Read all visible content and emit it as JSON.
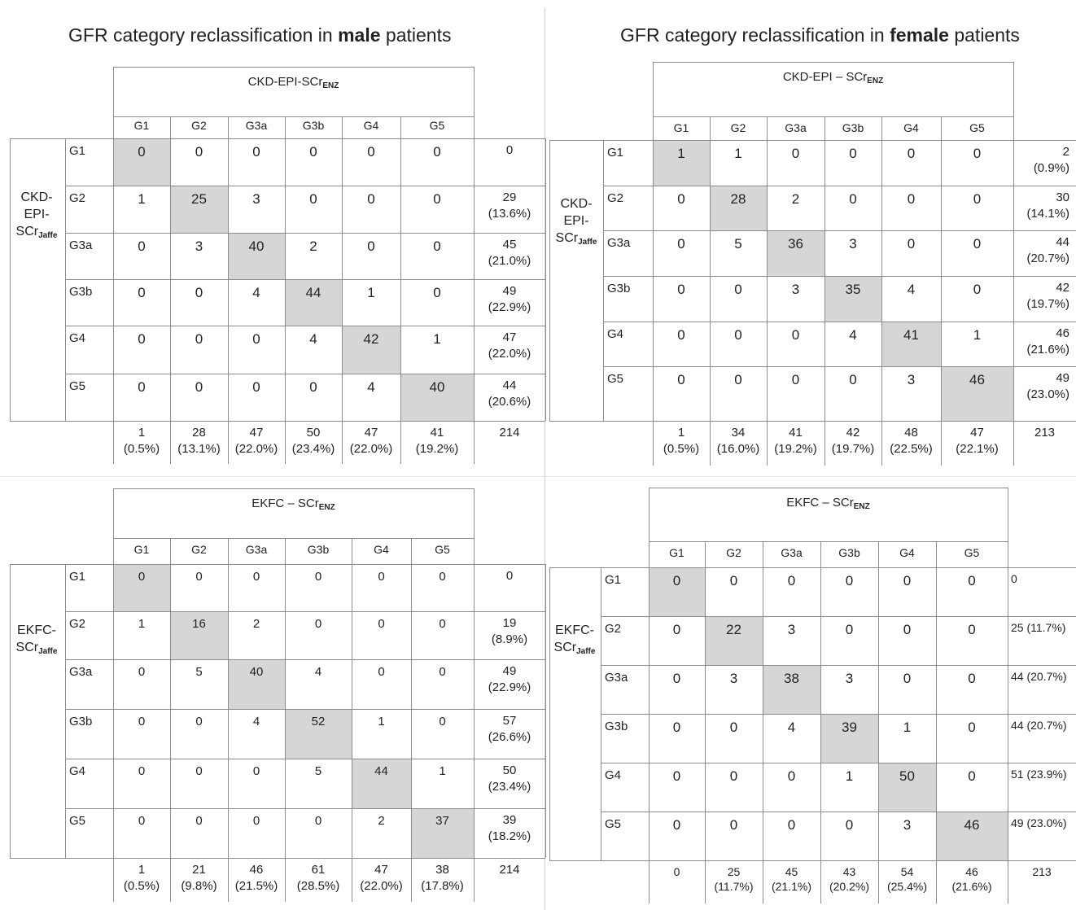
{
  "headings": {
    "male": {
      "prefix": "GFR category reclassification in ",
      "bold": "male",
      "suffix": " patients"
    },
    "female": {
      "prefix": "GFR category reclassification in ",
      "bold": "female",
      "suffix": " patients"
    }
  },
  "columns": [
    "G1",
    "G2",
    "G3a",
    "G3b",
    "G4",
    "G5"
  ],
  "rows": [
    "G1",
    "G2",
    "G3a",
    "G3b",
    "G4",
    "G5"
  ],
  "tables": [
    {
      "id": "male_ckd",
      "col_title": {
        "base": "CKD-EPI-SCr",
        "sub": "ENZ"
      },
      "row_title": {
        "lines": [
          "CKD-",
          "EPI-"
        ],
        "base": "SCr",
        "sub": "Jaffe"
      },
      "cells": [
        [
          0,
          0,
          0,
          0,
          0,
          0
        ],
        [
          1,
          25,
          3,
          0,
          0,
          0
        ],
        [
          0,
          3,
          40,
          2,
          0,
          0
        ],
        [
          0,
          0,
          4,
          44,
          1,
          0
        ],
        [
          0,
          0,
          0,
          4,
          42,
          1
        ],
        [
          0,
          0,
          0,
          0,
          4,
          40
        ]
      ],
      "row_totals": [
        [
          "0"
        ],
        [
          "29",
          "(13.6%)"
        ],
        [
          "45",
          "(21.0%)"
        ],
        [
          "49",
          "(22.9%)"
        ],
        [
          "47",
          "(22.0%)"
        ],
        [
          "44",
          "(20.6%)"
        ]
      ],
      "col_totals": [
        [
          "1",
          "(0.5%)"
        ],
        [
          "28",
          "(13.1%)"
        ],
        [
          "47",
          "(22.0%)"
        ],
        [
          "50",
          "(23.4%)"
        ],
        [
          "47",
          "(22.0%)"
        ],
        [
          "41",
          "(19.2%)"
        ]
      ],
      "grand_total": "214"
    },
    {
      "id": "female_ckd",
      "col_title": {
        "base": "CKD-EPI – SCr",
        "sub": "ENZ"
      },
      "row_title": {
        "lines": [
          "CKD-",
          "EPI-"
        ],
        "base": "SCr",
        "sub": "Jaffe"
      },
      "cells": [
        [
          1,
          1,
          0,
          0,
          0,
          0
        ],
        [
          0,
          28,
          2,
          0,
          0,
          0
        ],
        [
          0,
          5,
          36,
          3,
          0,
          0
        ],
        [
          0,
          0,
          3,
          35,
          4,
          0
        ],
        [
          0,
          0,
          0,
          4,
          41,
          1
        ],
        [
          0,
          0,
          0,
          0,
          3,
          46
        ]
      ],
      "row_totals": [
        [
          "2",
          "(0.9%)"
        ],
        [
          "30",
          "(14.1%)"
        ],
        [
          "44",
          "(20.7%)"
        ],
        [
          "42",
          "(19.7%)"
        ],
        [
          "46",
          "(21.6%)"
        ],
        [
          "49",
          "(23.0%)"
        ]
      ],
      "col_totals": [
        [
          "1",
          "(0.5%)"
        ],
        [
          "34",
          "(16.0%)"
        ],
        [
          "41",
          "(19.2%)"
        ],
        [
          "42",
          "(19.7%)"
        ],
        [
          "48",
          "(22.5%)"
        ],
        [
          "47",
          "(22.1%)"
        ]
      ],
      "grand_total": "213"
    },
    {
      "id": "male_ekfc",
      "col_title": {
        "base": "EKFC – SCr",
        "sub": "ENZ"
      },
      "row_title": {
        "lines": [
          "EKFC-"
        ],
        "base": "SCr",
        "sub": "Jaffe"
      },
      "cells": [
        [
          0,
          0,
          0,
          0,
          0,
          0
        ],
        [
          1,
          16,
          2,
          0,
          0,
          0
        ],
        [
          0,
          5,
          40,
          4,
          0,
          0
        ],
        [
          0,
          0,
          4,
          52,
          1,
          0
        ],
        [
          0,
          0,
          0,
          5,
          44,
          1
        ],
        [
          0,
          0,
          0,
          0,
          2,
          37
        ]
      ],
      "row_totals": [
        [
          "0"
        ],
        [
          "19",
          "(8.9%)"
        ],
        [
          "49",
          "(22.9%)"
        ],
        [
          "57",
          "(26.6%)"
        ],
        [
          "50",
          "(23.4%)"
        ],
        [
          "39",
          "(18.2%)"
        ]
      ],
      "col_totals": [
        [
          "1",
          "(0.5%)"
        ],
        [
          "21",
          "(9.8%)"
        ],
        [
          "46",
          "(21.5%)"
        ],
        [
          "61",
          "(28.5%)"
        ],
        [
          "47",
          "(22.0%)"
        ],
        [
          "38",
          "(17.8%)"
        ]
      ],
      "grand_total": "214"
    },
    {
      "id": "female_ekfc",
      "col_title": {
        "base": "EKFC – SCr",
        "sub": "ENZ"
      },
      "row_title": {
        "lines": [
          "EKFC-"
        ],
        "base": "SCr",
        "sub": "Jaffe"
      },
      "cells": [
        [
          0,
          0,
          0,
          0,
          0,
          0
        ],
        [
          0,
          22,
          3,
          0,
          0,
          0
        ],
        [
          0,
          3,
          38,
          3,
          0,
          0
        ],
        [
          0,
          0,
          4,
          39,
          1,
          0
        ],
        [
          0,
          0,
          0,
          1,
          50,
          0
        ],
        [
          0,
          0,
          0,
          0,
          3,
          46
        ]
      ],
      "row_totals": [
        [
          "0"
        ],
        [
          "25 (11.7%)"
        ],
        [
          "44 (20.7%)"
        ],
        [
          "44 (20.7%)"
        ],
        [
          "51 (23.9%)"
        ],
        [
          "49 (23.0%)"
        ]
      ],
      "col_totals": [
        [
          "0"
        ],
        [
          "25",
          "(11.7%)"
        ],
        [
          "45",
          "(21.1%)"
        ],
        [
          "43",
          "(20.2%)"
        ],
        [
          "54",
          "(25.4%)"
        ],
        [
          "46",
          "(21.6%)"
        ]
      ],
      "grand_total": "213"
    }
  ]
}
